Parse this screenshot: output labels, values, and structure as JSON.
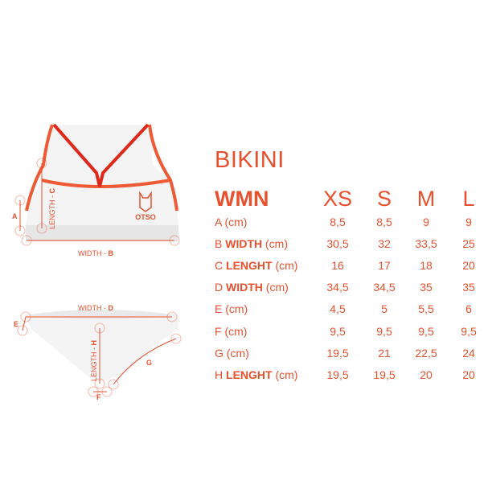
{
  "title": "BIKINI",
  "header": "WMN",
  "sizes": [
    "XS",
    "S",
    "M",
    "L"
  ],
  "rows": [
    {
      "letter": "A",
      "bold": "",
      "unit": "(cm)",
      "values": [
        "8,5",
        "8,5",
        "9",
        "9"
      ]
    },
    {
      "letter": "B",
      "bold": "WIDTH",
      "unit": "(cm)",
      "values": [
        "30,5",
        "32",
        "33,5",
        "25"
      ]
    },
    {
      "letter": "C",
      "bold": "LENGHT",
      "unit": "(cm)",
      "values": [
        "16",
        "17",
        "18",
        "20"
      ]
    },
    {
      "letter": "D",
      "bold": "WIDTH",
      "unit": "(cm)",
      "values": [
        "34,5",
        "34,5",
        "35",
        "35"
      ]
    },
    {
      "letter": "E",
      "bold": "",
      "unit": "(cm)",
      "values": [
        "4,5",
        "5",
        "5,5",
        "6"
      ]
    },
    {
      "letter": "F",
      "bold": "",
      "unit": "(cm)",
      "values": [
        "9,5",
        "9,5",
        "9,5",
        "9,5"
      ]
    },
    {
      "letter": "G",
      "bold": "",
      "unit": "(cm)",
      "values": [
        "19,5",
        "21",
        "22,5",
        "24"
      ]
    },
    {
      "letter": "H",
      "bold": "LENGHT",
      "unit": "(cm)",
      "values": [
        "19,5",
        "19,5",
        "20",
        "20"
      ]
    }
  ],
  "diagram": {
    "top_labels": {
      "a": "A",
      "length": "LENGTH - ",
      "c": "C",
      "width": "WIDTH - ",
      "b": "B"
    },
    "bottom_labels": {
      "width": "WIDTH - ",
      "d": "D",
      "e": "E",
      "length": "LENGTH - ",
      "h": "H",
      "g": "G",
      "f": "F"
    },
    "logo": "OTSO"
  },
  "colors": {
    "accent": "#e8502e",
    "strap": "#e0281a"
  }
}
